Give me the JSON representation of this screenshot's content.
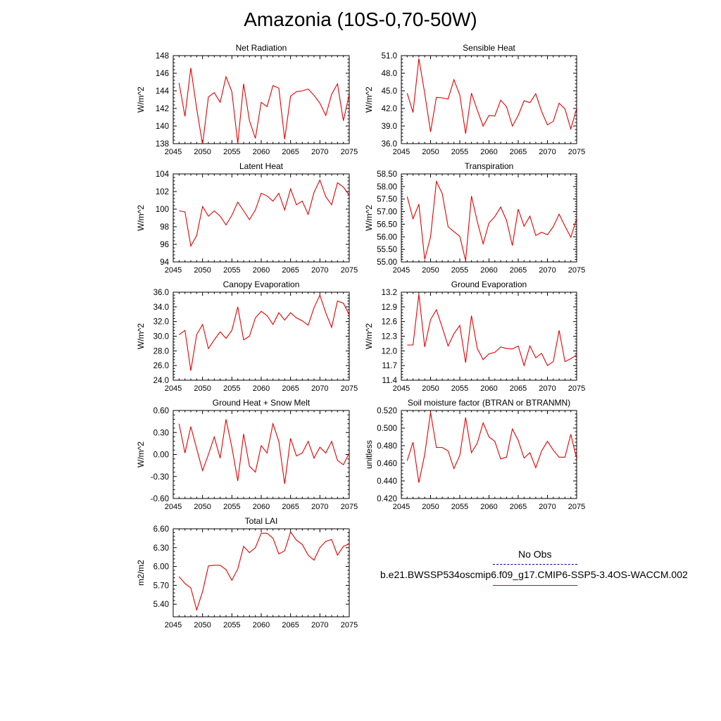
{
  "title": "Amazonia (10S-0,70-50W)",
  "colors": {
    "model": "#e60000",
    "obs": "#0000a0",
    "axis": "#000000"
  },
  "legend": {
    "obs_label": "No Obs",
    "model_label": "b.e21.BWSSP534oscmip6.f09_g17.CMIP6-SSP5-3.4OS-WACCM.002"
  },
  "chart_data": [
    {
      "type": "line",
      "title": "Net Radiation",
      "ylabel": "W/m^2",
      "xlim": [
        2045,
        2075
      ],
      "ylim": [
        138,
        148
      ],
      "xticks": [
        "2045",
        "2050",
        "2055",
        "2060",
        "2065",
        "2070",
        "2075"
      ],
      "yticks": [
        "138",
        "140",
        "142",
        "144",
        "146",
        "148"
      ],
      "x": [
        2046,
        2047,
        2048,
        2049,
        2050,
        2051,
        2052,
        2053,
        2054,
        2055,
        2056,
        2057,
        2058,
        2059,
        2060,
        2061,
        2062,
        2063,
        2064,
        2065,
        2066,
        2067,
        2068,
        2069,
        2070,
        2071,
        2072,
        2073,
        2074,
        2075
      ],
      "series": [
        {
          "values": [
            144.9,
            141.1,
            146.6,
            142.0,
            137.9,
            143.3,
            143.8,
            142.7,
            145.6,
            143.9,
            138.0,
            144.8,
            140.6,
            138.6,
            142.7,
            142.2,
            144.6,
            144.3,
            138.5,
            143.4,
            143.9,
            144.0,
            144.2,
            143.5,
            142.6,
            141.2,
            143.6,
            144.8,
            140.6,
            143.6
          ]
        }
      ]
    },
    {
      "type": "line",
      "title": "Sensible Heat",
      "ylabel": "W/m^2",
      "xlim": [
        2045,
        2075
      ],
      "ylim": [
        36,
        51
      ],
      "xticks": [
        "2045",
        "2050",
        "2055",
        "2060",
        "2065",
        "2070",
        "2075"
      ],
      "yticks": [
        "36.0",
        "39.0",
        "42.0",
        "45.0",
        "48.0",
        "51.0"
      ],
      "x": [
        2046,
        2047,
        2048,
        2049,
        2050,
        2051,
        2052,
        2053,
        2054,
        2055,
        2056,
        2057,
        2058,
        2059,
        2060,
        2061,
        2062,
        2063,
        2064,
        2065,
        2066,
        2067,
        2068,
        2069,
        2070,
        2071,
        2072,
        2073,
        2074,
        2075
      ],
      "series": [
        {
          "values": [
            44.6,
            41.3,
            50.5,
            44.6,
            38.0,
            43.9,
            43.8,
            43.6,
            46.9,
            44.3,
            37.7,
            44.6,
            41.7,
            39.0,
            40.8,
            40.7,
            43.4,
            42.3,
            39.0,
            40.8,
            43.3,
            43.0,
            44.5,
            41.5,
            39.2,
            39.8,
            42.9,
            41.9,
            38.5,
            42.0
          ]
        }
      ]
    },
    {
      "type": "line",
      "title": "Latent Heat",
      "ylabel": "W/m^2",
      "xlim": [
        2045,
        2075
      ],
      "ylim": [
        94,
        104
      ],
      "xticks": [
        "2045",
        "2050",
        "2055",
        "2060",
        "2065",
        "2070",
        "2075"
      ],
      "yticks": [
        "94",
        "96",
        "98",
        "100",
        "102",
        "104"
      ],
      "x": [
        2046,
        2047,
        2048,
        2049,
        2050,
        2051,
        2052,
        2053,
        2054,
        2055,
        2056,
        2057,
        2058,
        2059,
        2060,
        2061,
        2062,
        2063,
        2064,
        2065,
        2066,
        2067,
        2068,
        2069,
        2070,
        2071,
        2072,
        2073,
        2074,
        2075
      ],
      "series": [
        {
          "values": [
            99.8,
            99.7,
            95.8,
            97.0,
            100.3,
            99.2,
            99.8,
            99.2,
            98.2,
            99.3,
            100.8,
            99.8,
            98.8,
            99.9,
            101.8,
            101.5,
            100.9,
            101.8,
            99.9,
            102.3,
            100.5,
            100.9,
            99.4,
            101.9,
            103.3,
            101.4,
            100.5,
            103.0,
            102.5,
            101.6
          ]
        }
      ]
    },
    {
      "type": "line",
      "title": "Transpiration",
      "ylabel": "W/m^2",
      "xlim": [
        2045,
        2075
      ],
      "ylim": [
        55,
        58.5
      ],
      "xticks": [
        "2045",
        "2050",
        "2055",
        "2060",
        "2065",
        "2070",
        "2075"
      ],
      "yticks": [
        "55.00",
        "55.50",
        "56.00",
        "56.50",
        "57.00",
        "57.50",
        "58.00",
        "58.50"
      ],
      "x": [
        2046,
        2047,
        2048,
        2049,
        2050,
        2051,
        2052,
        2053,
        2054,
        2055,
        2056,
        2057,
        2058,
        2059,
        2060,
        2061,
        2062,
        2063,
        2064,
        2065,
        2066,
        2067,
        2068,
        2069,
        2070,
        2071,
        2072,
        2073,
        2074,
        2075
      ],
      "series": [
        {
          "values": [
            57.6,
            56.72,
            57.3,
            55.1,
            56.0,
            58.2,
            57.72,
            56.4,
            56.2,
            56.02,
            55.05,
            57.62,
            56.6,
            55.72,
            56.55,
            56.8,
            57.18,
            56.65,
            55.65,
            57.1,
            56.42,
            56.82,
            56.05,
            56.18,
            56.08,
            56.4,
            56.9,
            56.42,
            55.98,
            56.72
          ]
        }
      ]
    },
    {
      "type": "line",
      "title": "Canopy Evaporation",
      "ylabel": "W/m^2",
      "xlim": [
        2045,
        2075
      ],
      "ylim": [
        24,
        36
      ],
      "xticks": [
        "2045",
        "2050",
        "2055",
        "2060",
        "2065",
        "2070",
        "2075"
      ],
      "yticks": [
        "24.0",
        "26.0",
        "28.0",
        "30.0",
        "32.0",
        "34.0",
        "36.0"
      ],
      "x": [
        2046,
        2047,
        2048,
        2049,
        2050,
        2051,
        2052,
        2053,
        2054,
        2055,
        2056,
        2057,
        2058,
        2059,
        2060,
        2061,
        2062,
        2063,
        2064,
        2065,
        2066,
        2067,
        2068,
        2069,
        2070,
        2071,
        2072,
        2073,
        2074,
        2075
      ],
      "series": [
        {
          "values": [
            30.2,
            30.8,
            25.3,
            30.2,
            31.6,
            28.3,
            29.5,
            30.6,
            29.7,
            30.8,
            34.0,
            29.5,
            30.0,
            32.5,
            33.4,
            32.8,
            31.6,
            33.2,
            32.2,
            33.2,
            32.5,
            32.1,
            31.5,
            33.9,
            35.6,
            33.2,
            31.2,
            34.8,
            34.5,
            32.9
          ]
        }
      ]
    },
    {
      "type": "line",
      "title": "Ground Evaporation",
      "ylabel": "W/m^2",
      "xlim": [
        2045,
        2075
      ],
      "ylim": [
        11.4,
        13.2
      ],
      "xticks": [
        "2045",
        "2050",
        "2055",
        "2060",
        "2065",
        "2070",
        "2075"
      ],
      "yticks": [
        "11.4",
        "11.7",
        "12.0",
        "12.3",
        "12.6",
        "12.9",
        "13.2"
      ],
      "x": [
        2046,
        2047,
        2048,
        2049,
        2050,
        2051,
        2052,
        2053,
        2054,
        2055,
        2056,
        2057,
        2058,
        2059,
        2060,
        2061,
        2062,
        2063,
        2064,
        2065,
        2066,
        2067,
        2068,
        2069,
        2070,
        2071,
        2072,
        2073,
        2074,
        2075
      ],
      "series": [
        {
          "values": [
            12.12,
            12.12,
            13.16,
            12.08,
            12.64,
            12.84,
            12.48,
            12.1,
            12.35,
            12.52,
            11.76,
            12.72,
            12.05,
            11.82,
            11.94,
            11.97,
            12.08,
            12.05,
            12.04,
            12.1,
            11.7,
            12.1,
            11.86,
            11.95,
            11.7,
            11.78,
            12.42,
            11.78,
            11.84,
            11.92
          ]
        }
      ]
    },
    {
      "type": "line",
      "title": "Ground Heat + Snow Melt",
      "ylabel": "W/m^2",
      "xlim": [
        2045,
        2075
      ],
      "ylim": [
        -0.6,
        0.6
      ],
      "xticks": [
        "2045",
        "2050",
        "2055",
        "2060",
        "2065",
        "2070",
        "2075"
      ],
      "yticks": [
        "-0.60",
        "-0.30",
        "0.00",
        "0.30",
        "0.60"
      ],
      "x": [
        2046,
        2047,
        2048,
        2049,
        2050,
        2051,
        2052,
        2053,
        2054,
        2055,
        2056,
        2057,
        2058,
        2059,
        2060,
        2061,
        2062,
        2063,
        2064,
        2065,
        2066,
        2067,
        2068,
        2069,
        2070,
        2071,
        2072,
        2073,
        2074,
        2075
      ],
      "series": [
        {
          "values": [
            0.42,
            0.02,
            0.38,
            0.08,
            -0.22,
            0.0,
            0.24,
            -0.05,
            0.48,
            0.1,
            -0.36,
            0.28,
            -0.16,
            -0.24,
            0.12,
            0.02,
            0.42,
            0.18,
            -0.4,
            0.22,
            -0.02,
            0.02,
            0.18,
            -0.05,
            0.1,
            0.02,
            0.18,
            -0.08,
            -0.14,
            0.02
          ]
        }
      ]
    },
    {
      "type": "line",
      "title": "Soil moisture factor (BTRAN or BTRANMN)",
      "ylabel": "unitless",
      "xlim": [
        2045,
        2075
      ],
      "ylim": [
        0.42,
        0.52
      ],
      "xticks": [
        "2045",
        "2050",
        "2055",
        "2060",
        "2065",
        "2070",
        "2075"
      ],
      "yticks": [
        "0.420",
        "0.440",
        "0.460",
        "0.480",
        "0.500",
        "0.520"
      ],
      "x": [
        2046,
        2047,
        2048,
        2049,
        2050,
        2051,
        2052,
        2053,
        2054,
        2055,
        2056,
        2057,
        2058,
        2059,
        2060,
        2061,
        2062,
        2063,
        2064,
        2065,
        2066,
        2067,
        2068,
        2069,
        2070,
        2071,
        2072,
        2073,
        2074,
        2075
      ],
      "series": [
        {
          "values": [
            0.463,
            0.484,
            0.438,
            0.47,
            0.518,
            0.478,
            0.478,
            0.474,
            0.454,
            0.469,
            0.512,
            0.472,
            0.483,
            0.506,
            0.49,
            0.485,
            0.465,
            0.467,
            0.499,
            0.486,
            0.466,
            0.472,
            0.455,
            0.474,
            0.485,
            0.475,
            0.467,
            0.467,
            0.493,
            0.465
          ]
        }
      ]
    },
    {
      "type": "line",
      "title": "Total LAI",
      "ylabel": "m2/m2",
      "xlim": [
        2045,
        2075
      ],
      "ylim": [
        5.2,
        6.6
      ],
      "xticks": [
        "2045",
        "2050",
        "2055",
        "2060",
        "2065",
        "2070",
        "2075"
      ],
      "yticks": [
        "5.40",
        "5.70",
        "6.00",
        "6.30",
        "6.60"
      ],
      "x": [
        2046,
        2047,
        2048,
        2049,
        2050,
        2051,
        2052,
        2053,
        2054,
        2055,
        2056,
        2057,
        2058,
        2059,
        2060,
        2061,
        2062,
        2063,
        2064,
        2065,
        2066,
        2067,
        2068,
        2069,
        2070,
        2071,
        2072,
        2073,
        2074,
        2075
      ],
      "series": [
        {
          "values": [
            5.84,
            5.73,
            5.66,
            5.31,
            5.6,
            6.01,
            6.02,
            6.02,
            5.95,
            5.78,
            5.96,
            6.32,
            6.22,
            6.3,
            6.53,
            6.53,
            6.45,
            6.2,
            6.25,
            6.55,
            6.42,
            6.35,
            6.18,
            6.1,
            6.3,
            6.4,
            6.43,
            6.18,
            6.32,
            6.36
          ]
        }
      ]
    }
  ]
}
